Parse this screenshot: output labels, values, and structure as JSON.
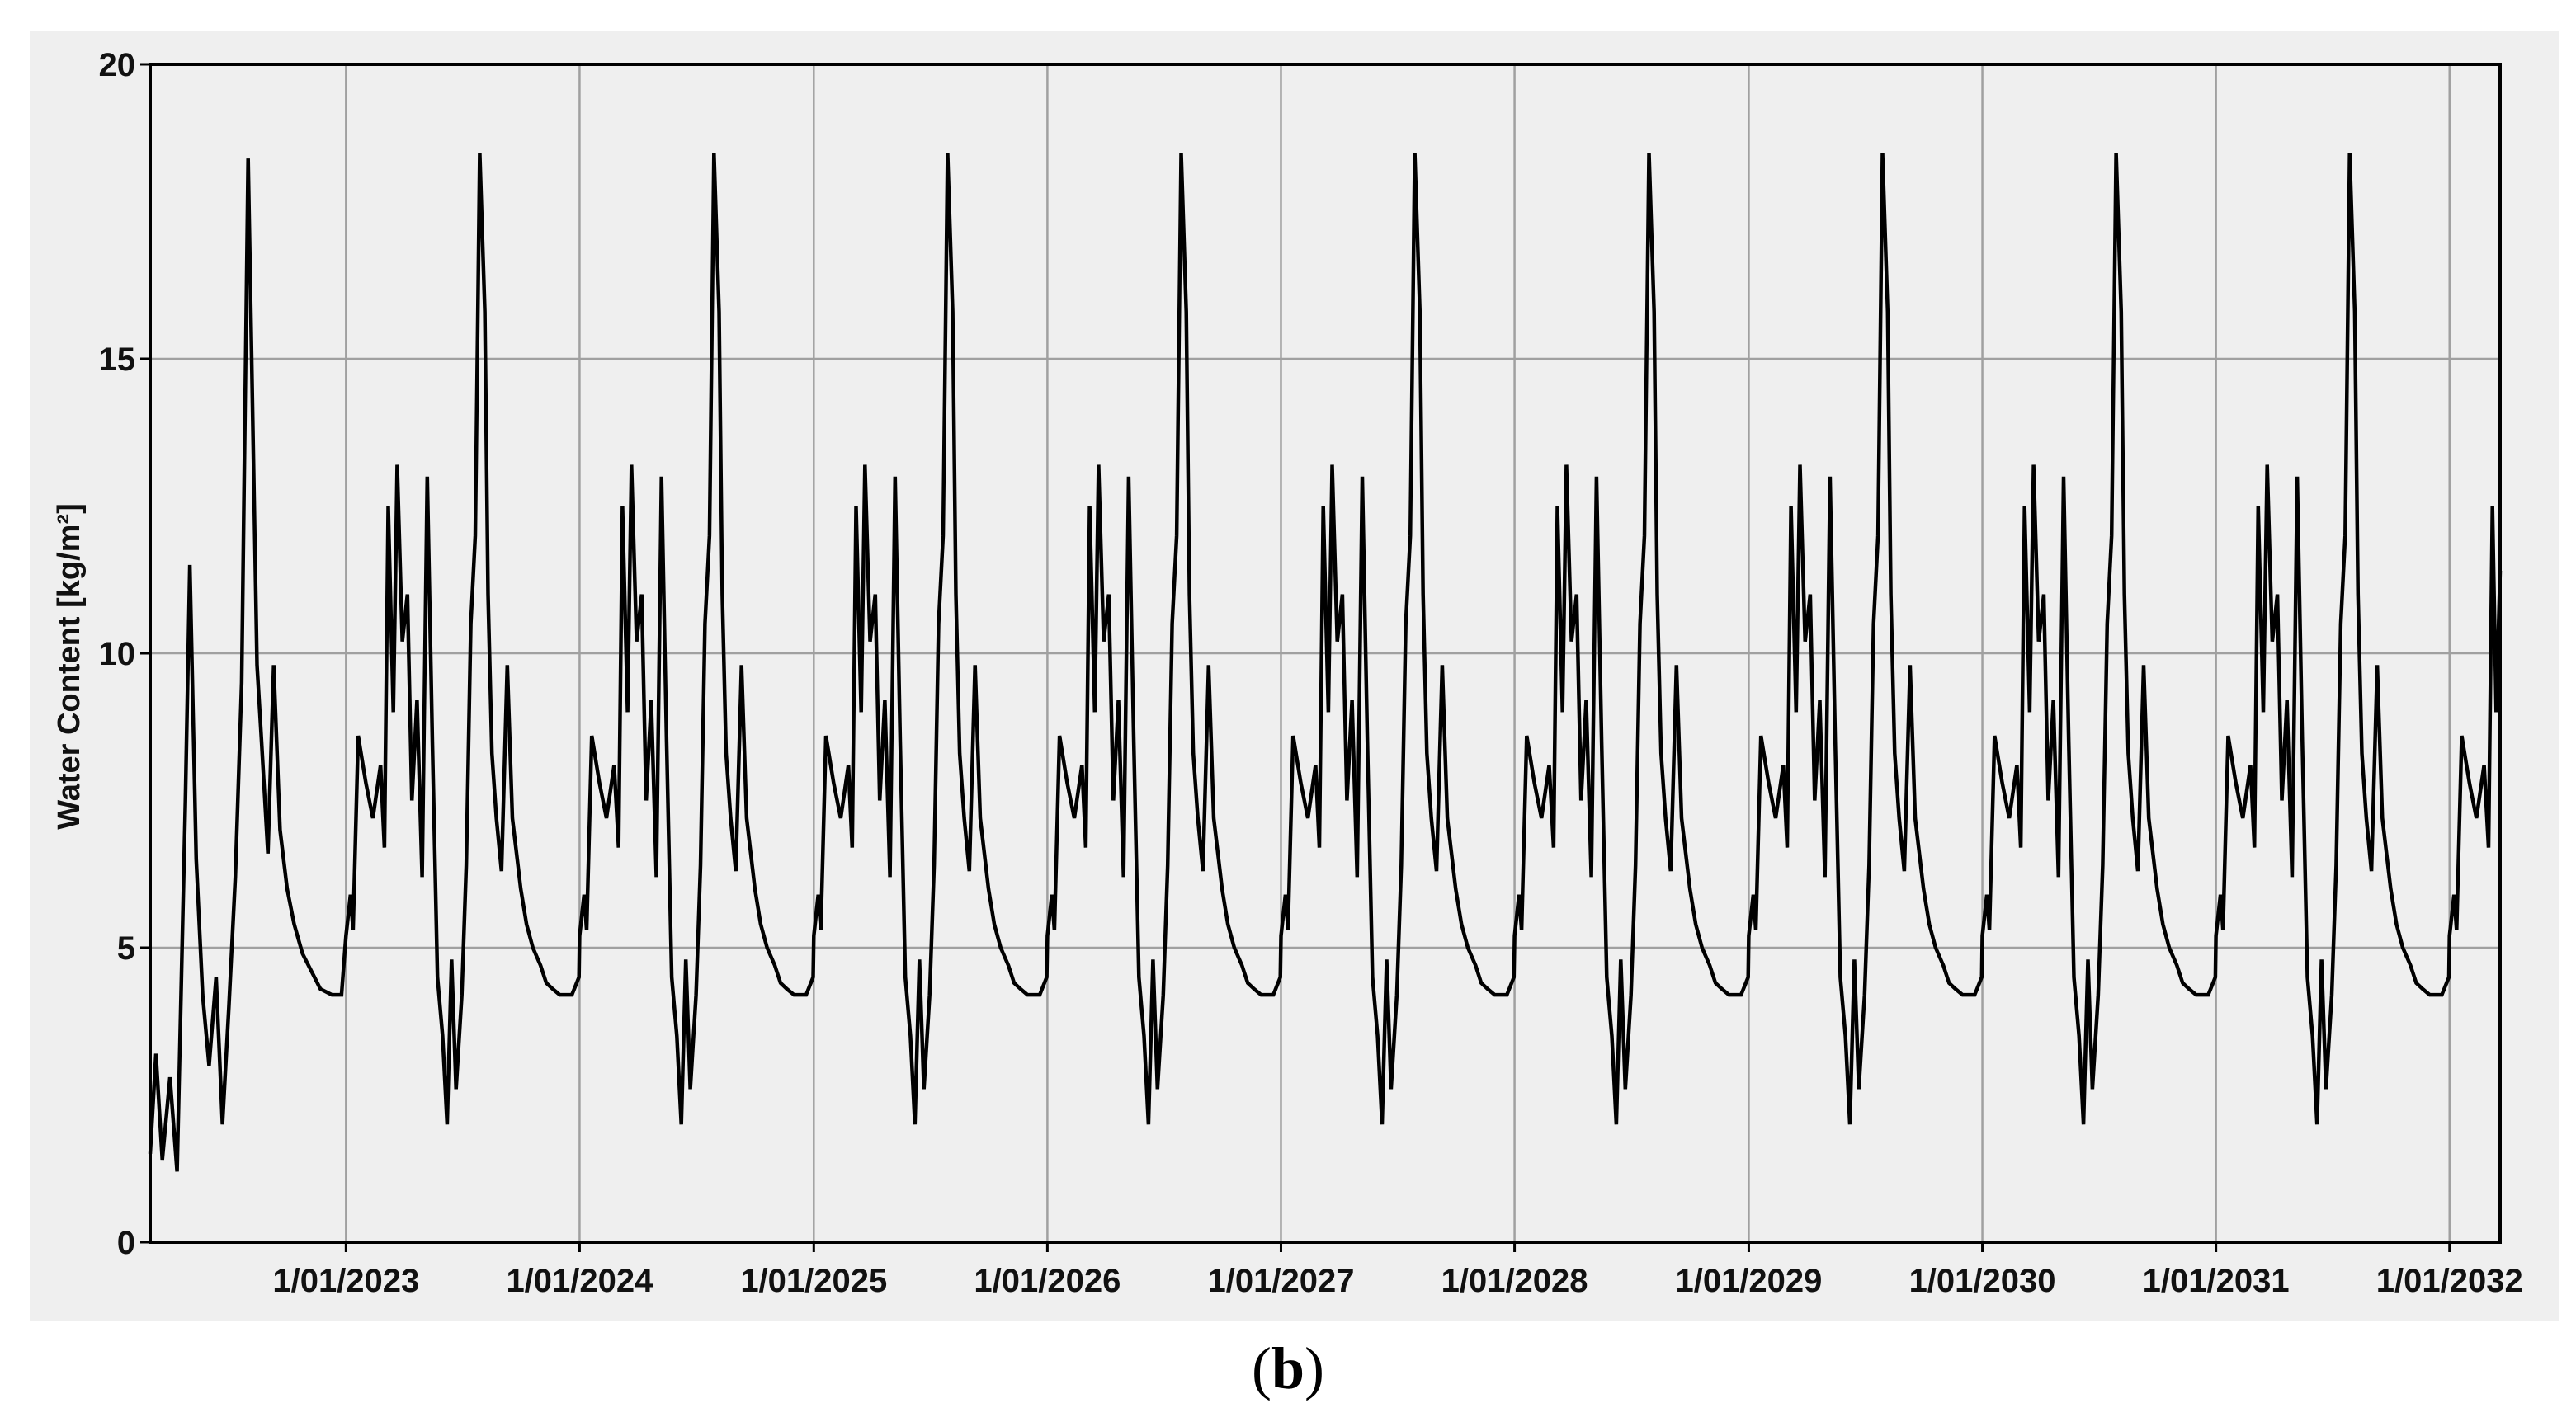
{
  "caption": {
    "open": "(",
    "letter": "b",
    "close": ")"
  },
  "colors": {
    "panel_background": "#efefef",
    "plot_background": "#efefef",
    "grid": "#a0a0a0",
    "line": "#000000",
    "axes": "#000000"
  },
  "chart_data": {
    "type": "line",
    "title": "",
    "xlabel": "",
    "ylabel": "Water Content [kg/m²]",
    "xlim": [
      "2022-03-01",
      "2032-03-20"
    ],
    "ylim": [
      0,
      20
    ],
    "yticks": [
      0,
      5,
      10,
      15,
      20
    ],
    "ytick_labels": [
      "0",
      "5",
      "10",
      "15",
      "20"
    ],
    "xticks": [
      "2023-01-01",
      "2024-01-01",
      "2025-01-01",
      "2026-01-01",
      "2027-01-01",
      "2028-01-01",
      "2029-01-01",
      "2030-01-01",
      "2031-01-01",
      "2032-01-01"
    ],
    "xtick_labels": [
      "1/01/2023",
      "1/01/2024",
      "1/01/2025",
      "1/01/2026",
      "1/01/2027",
      "1/01/2028",
      "1/01/2029",
      "1/01/2030",
      "1/01/2031",
      "1/01/2032"
    ],
    "grid": true,
    "legend": "none",
    "first_year": {
      "x": [
        "2022-03-01",
        "2022-03-10",
        "2022-03-20",
        "2022-04-01",
        "2022-04-12",
        "2022-04-25",
        "2022-05-02",
        "2022-05-12",
        "2022-05-22",
        "2022-06-01",
        "2022-06-12",
        "2022-06-22",
        "2022-07-02",
        "2022-07-12",
        "2022-07-22",
        "2022-08-01",
        "2022-08-09",
        "2022-08-15",
        "2022-08-22",
        "2022-09-01",
        "2022-09-10",
        "2022-09-20",
        "2022-10-01",
        "2022-10-12",
        "2022-10-25",
        "2022-11-08",
        "2022-11-22",
        "2022-12-10",
        "2022-12-25"
      ],
      "y": [
        1.5,
        3.2,
        1.4,
        2.8,
        1.2,
        7.5,
        11.5,
        6.5,
        4.2,
        3.0,
        4.5,
        2.0,
        4.0,
        6.2,
        9.5,
        18.4,
        13.5,
        9.8,
        8.5,
        6.6,
        9.8,
        7.0,
        6.0,
        5.4,
        4.9,
        4.6,
        4.3,
        4.2,
        4.2
      ]
    },
    "typical_year": {
      "x": [
        "01-01",
        "01-08",
        "01-12",
        "01-20",
        "02-01",
        "02-12",
        "02-24",
        "03-02",
        "03-08",
        "03-16",
        "03-22",
        "03-30",
        "04-07",
        "04-14",
        "04-22",
        "04-30",
        "05-08",
        "05-16",
        "05-24",
        "06-01",
        "06-08",
        "06-15",
        "06-22",
        "07-01",
        "07-08",
        "07-15",
        "07-22",
        "07-29",
        "08-06",
        "08-11",
        "08-17",
        "08-24",
        "09-01",
        "09-10",
        "09-18",
        "10-01",
        "10-10",
        "10-20",
        "11-01",
        "11-10",
        "11-20",
        "12-01",
        "12-12",
        "12-20",
        "12-31"
      ],
      "y": [
        5.2,
        5.9,
        5.3,
        8.6,
        7.8,
        7.2,
        8.1,
        6.7,
        12.5,
        9.0,
        13.2,
        10.2,
        11.0,
        7.5,
        9.2,
        6.2,
        13.0,
        8.5,
        4.5,
        3.5,
        2.0,
        4.8,
        2.6,
        4.2,
        6.4,
        10.5,
        12.0,
        18.5,
        15.8,
        11.0,
        8.3,
        7.2,
        6.3,
        9.8,
        7.2,
        6.0,
        5.4,
        5.0,
        4.7,
        4.4,
        4.3,
        4.2,
        4.2,
        4.2,
        4.5
      ]
    },
    "last_segment": {
      "x": [
        "2032-01-01",
        "2032-01-08",
        "2032-01-12",
        "2032-01-20",
        "2032-02-01",
        "2032-02-12",
        "2032-02-24",
        "2032-03-02",
        "2032-03-08",
        "2032-03-14",
        "2032-03-20"
      ],
      "y": [
        5.2,
        5.9,
        5.3,
        8.6,
        7.8,
        7.2,
        8.1,
        6.7,
        12.5,
        9.0,
        11.4
      ]
    }
  }
}
